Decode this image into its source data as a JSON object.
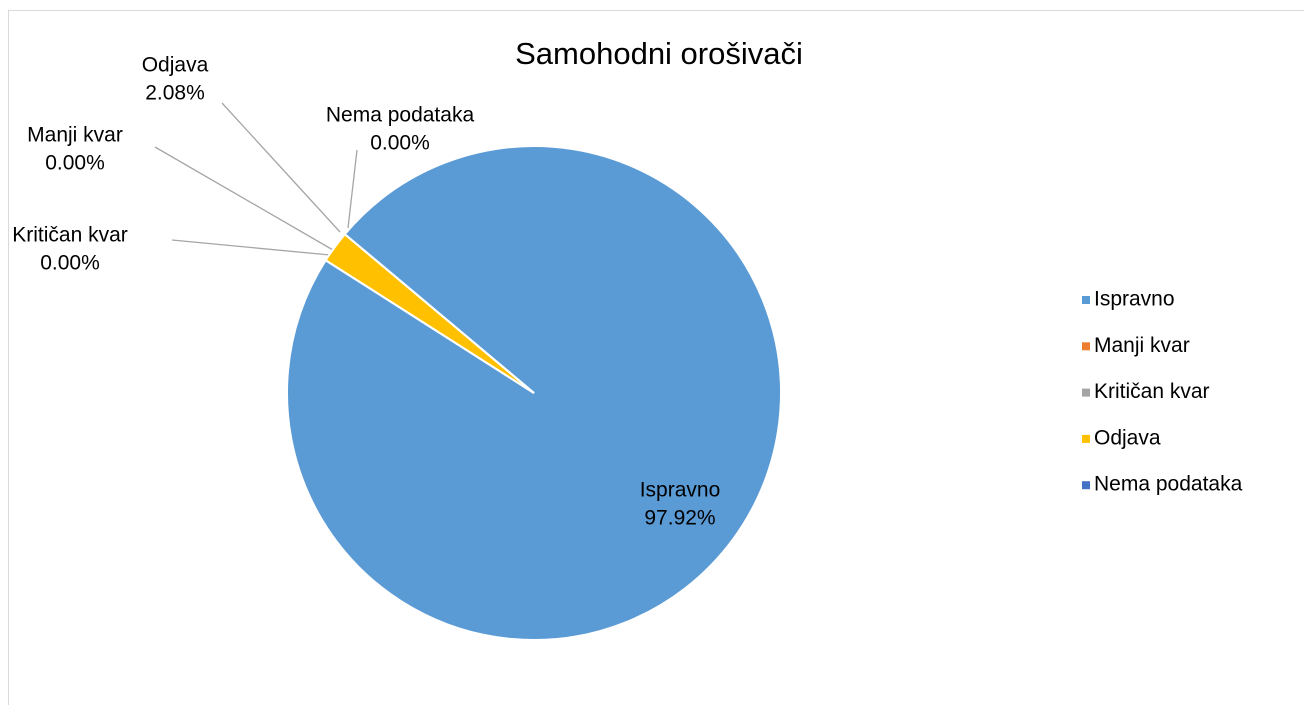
{
  "chart_data": {
    "type": "pie",
    "title": "Samohodni orošivači",
    "categories": [
      "Ispravno",
      "Manji kvar",
      "Kritičan kvar",
      "Odjava",
      "Nema podataka"
    ],
    "values": [
      97.92,
      0,
      0,
      2.08,
      0
    ],
    "value_labels": [
      "97.92%",
      "0.00%",
      "0.00%",
      "2.08%",
      "0.00%"
    ],
    "colors": [
      "#5b9bd5",
      "#ed7d31",
      "#a5a5a5",
      "#ffc000",
      "#4472c4"
    ],
    "legend": "right"
  }
}
